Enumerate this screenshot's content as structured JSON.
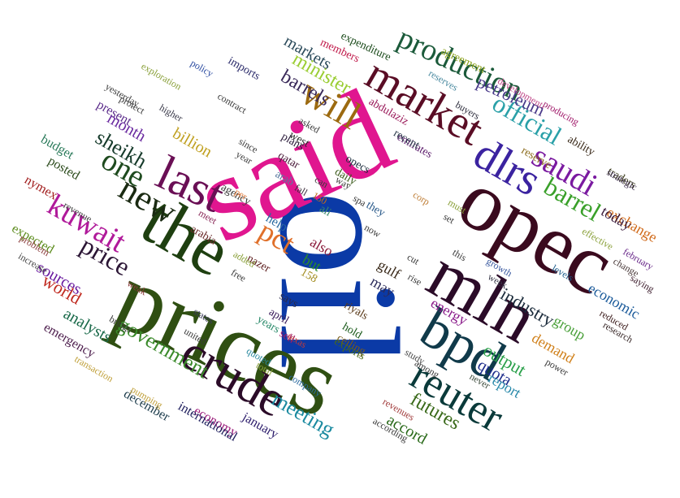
{
  "words": [
    {
      "text": "oil",
      "color": "#0b3aa6"
    },
    {
      "text": "said",
      "color": "#e0168f"
    },
    {
      "text": "prices",
      "color": "#2f4f12"
    },
    {
      "text": "opec",
      "color": "#3a0a1e"
    },
    {
      "text": "mln",
      "color": "#2b0b28"
    },
    {
      "text": "the",
      "color": "#1e3f10"
    },
    {
      "text": "bpd",
      "color": "#103a4a"
    },
    {
      "text": "crude",
      "color": "#2b0b28"
    },
    {
      "text": "last",
      "color": "#6a0f55"
    },
    {
      "text": "reuter",
      "color": "#0a3a3a"
    },
    {
      "text": "market",
      "color": "#5a0d25"
    },
    {
      "text": "dlrs",
      "color": "#3b23a0"
    },
    {
      "text": "will",
      "color": "#9c6a10"
    },
    {
      "text": "new",
      "color": "#1a2a12"
    },
    {
      "text": "one",
      "color": "#1e4a1e"
    },
    {
      "text": "saudi",
      "color": "#7a1aa0"
    },
    {
      "text": "kuwait",
      "color": "#b01a9a"
    },
    {
      "text": "production",
      "color": "#1b5a3a"
    },
    {
      "text": "official",
      "color": "#2aa0a8"
    },
    {
      "text": "barrel",
      "color": "#3aa02a"
    },
    {
      "text": "price",
      "color": "#2b1535"
    },
    {
      "text": "pct",
      "color": "#e0702a"
    },
    {
      "text": "government",
      "color": "#3a8a2a"
    },
    {
      "text": "meeting",
      "color": "#1a8aa0"
    },
    {
      "text": "minister",
      "color": "#9acd32"
    },
    {
      "text": "barrels",
      "color": "#3a2a5a"
    },
    {
      "text": "sheikh",
      "color": "#153a2a"
    },
    {
      "text": "industry",
      "color": "#1a2a3a"
    },
    {
      "text": "petroleum",
      "color": "#4a3a8a"
    },
    {
      "text": "world",
      "color": "#c02a20"
    },
    {
      "text": "futures",
      "color": "#3a6a1a"
    },
    {
      "text": "markets",
      "color": "#2a4a5a"
    },
    {
      "text": "month",
      "color": "#6a2aa0"
    },
    {
      "text": "accord",
      "color": "#2a6a1a"
    },
    {
      "text": "output",
      "color": "#2aa04a"
    },
    {
      "text": "quota",
      "color": "#1a2a8a"
    },
    {
      "text": "billion",
      "color": "#c0a020"
    },
    {
      "text": "sources",
      "color": "#6a1aa0"
    },
    {
      "text": "analysts",
      "color": "#1a6a4a"
    },
    {
      "text": "economic",
      "color": "#1a5a9a"
    },
    {
      "text": "exchange",
      "color": "#d06a1a"
    },
    {
      "text": "today",
      "color": "#3a1a3a"
    },
    {
      "text": "energy",
      "color": "#8a1a8a"
    },
    {
      "text": "also",
      "color": "#8a1a3a"
    },
    {
      "text": "but",
      "color": "#2a8a2a"
    },
    {
      "text": "gulf",
      "color": "#3a2a1a"
    },
    {
      "text": "may",
      "color": "#2a2a5a"
    },
    {
      "text": "group",
      "color": "#4aa03a"
    },
    {
      "text": "report",
      "color": "#2a8aaa"
    },
    {
      "text": "demand",
      "color": "#d0801a"
    },
    {
      "text": "january",
      "color": "#2a1a6a"
    },
    {
      "text": "economy",
      "color": "#9a1a7a"
    },
    {
      "text": "international",
      "color": "#1a1a5a"
    },
    {
      "text": "december",
      "color": "#1a3a4a"
    },
    {
      "text": "emergency",
      "color": "#4a1a4a"
    },
    {
      "text": "present",
      "color": "#5a2a8a"
    },
    {
      "text": "posted",
      "color": "#2a4a1a"
    },
    {
      "text": "budget",
      "color": "#2a7a5a"
    },
    {
      "text": "nymex",
      "color": "#a01a1a"
    },
    {
      "text": "expected",
      "color": "#5a8a1a"
    },
    {
      "text": "help",
      "color": "#2a6aa0"
    },
    {
      "text": "agreement",
      "color": "#8aa01a"
    },
    {
      "text": "members",
      "color": "#c01a4a"
    },
    {
      "text": "expenditure",
      "color": "#1a4a1a"
    },
    {
      "text": "imports",
      "color": "#2a2a6a"
    },
    {
      "text": "plans",
      "color": "#2a1a3a"
    },
    {
      "text": "abdulaziz",
      "color": "#9a1a5a"
    },
    {
      "text": "emirates",
      "color": "#5a1a6a"
    },
    {
      "text": "recent",
      "color": "#2a3a4a"
    },
    {
      "text": "opecs",
      "color": "#1a2a3a"
    },
    {
      "text": "daily",
      "color": "#3a5a1a"
    },
    {
      "text": "west",
      "color": "#2a2a2a"
    },
    {
      "text": "qatar",
      "color": "#4a1a3a"
    },
    {
      "text": "riyals",
      "color": "#5a3a1a"
    },
    {
      "text": "hold",
      "color": "#1a5a1a"
    },
    {
      "text": "sell",
      "color": "#a01a6a"
    },
    {
      "text": "says",
      "color": "#2a2a4a"
    },
    {
      "text": "april",
      "color": "#3a1a5a"
    },
    {
      "text": "nazer",
      "color": "#5a1a1a"
    },
    {
      "text": "158",
      "color": "#a08a1a"
    },
    {
      "text": "years",
      "color": "#2a8a6a"
    },
    {
      "text": "ceiling",
      "color": "#7a5a1a"
    },
    {
      "text": "exports",
      "color": "#4a6a1a"
    },
    {
      "text": "they",
      "color": "#2a5a8a"
    },
    {
      "text": "ali",
      "color": "#3a8a6a"
    },
    {
      "text": "arab",
      "color": "#5a7aa0"
    },
    {
      "text": "arabia",
      "color": "#6a2a2a"
    },
    {
      "text": "agency",
      "color": "#3a3a3a"
    },
    {
      "text": "traders",
      "color": "#3a3a1a"
    },
    {
      "text": "ability",
      "color": "#3a2a1a"
    },
    {
      "text": "reserve",
      "color": "#8a6a1a"
    },
    {
      "text": "development",
      "color": "#c04a8a"
    },
    {
      "text": "producing",
      "color": "#a01a6a"
    },
    {
      "text": "buyers",
      "color": "#2a2a3a"
    },
    {
      "text": "reserves",
      "color": "#4a8aa0"
    },
    {
      "text": "strategic",
      "color": "#3a2a4a"
    },
    {
      "text": "effective",
      "color": "#8aa03a"
    },
    {
      "text": "february",
      "color": "#6a2a8a"
    },
    {
      "text": "change",
      "color": "#4a3a3a"
    },
    {
      "text": "saying",
      "color": "#3a1a2a"
    },
    {
      "text": "levels",
      "color": "#1a5a8a"
    },
    {
      "text": "growth",
      "color": "#3a5aa0"
    },
    {
      "text": "week",
      "color": "#3a3a4a"
    },
    {
      "text": "reduced",
      "color": "#3a1a1a"
    },
    {
      "text": "research",
      "color": "#3a2a2a"
    },
    {
      "text": "power",
      "color": "#3a3a3a"
    },
    {
      "text": "never",
      "color": "#3a4a3a"
    },
    {
      "text": "study",
      "color": "#4a4a4a"
    },
    {
      "text": "among",
      "color": "#3a3a3a"
    },
    {
      "text": "according",
      "color": "#3a3a3a"
    },
    {
      "text": "revenues",
      "color": "#a03a3a"
    },
    {
      "text": "company",
      "color": "#2a6aa0"
    },
    {
      "text": "texas",
      "color": "#c03a3a"
    },
    {
      "text": "total",
      "color": "#8aa03a"
    },
    {
      "text": "quoted",
      "color": "#2a8aa0"
    },
    {
      "text": "united",
      "color": "#3a3a3a"
    },
    {
      "text": "states",
      "color": "#3a3a5a"
    },
    {
      "text": "brings",
      "color": "#3a3a3a"
    },
    {
      "text": "weak",
      "color": "#8a3a3a"
    },
    {
      "text": "transaction",
      "color": "#c0a03a"
    },
    {
      "text": "pumping",
      "color": "#c0a03a"
    },
    {
      "text": "increase",
      "color": "#4a4a4a"
    },
    {
      "text": "problem",
      "color": "#8a3a3a"
    },
    {
      "text": "revenue",
      "color": "#3a3a3a"
    },
    {
      "text": "policy",
      "color": "#2a4aa0"
    },
    {
      "text": "exploration",
      "color": "#8aa03a"
    },
    {
      "text": "yesterday",
      "color": "#3a3a3a"
    },
    {
      "text": "protect",
      "color": "#3a3a3a"
    },
    {
      "text": "higher",
      "color": "#3a3a4a"
    },
    {
      "text": "contract",
      "color": "#3a3a3a"
    },
    {
      "text": "since",
      "color": "#3a3a3a"
    },
    {
      "text": "year",
      "color": "#3a3a3a"
    },
    {
      "text": "asked",
      "color": "#3a3a3a"
    },
    {
      "text": "fall",
      "color": "#3a2a3a"
    },
    {
      "text": "per",
      "color": "#e07a3a"
    },
    {
      "text": "meet",
      "color": "#8a2a5a"
    },
    {
      "text": "added",
      "color": "#8aa03a"
    },
    {
      "text": "free",
      "color": "#3a3a3a"
    },
    {
      "text": "150",
      "color": "#c06a1a"
    },
    {
      "text": "can",
      "color": "#3a3a3a"
    },
    {
      "text": "way",
      "color": "#3a3a3a"
    },
    {
      "text": "spa",
      "color": "#3a3a3a"
    },
    {
      "text": "now",
      "color": "#3a3a3a"
    },
    {
      "text": "corp",
      "color": "#c0803a"
    },
    {
      "text": "must",
      "color": "#8aa03a"
    },
    {
      "text": "set",
      "color": "#3a3a3a"
    },
    {
      "text": "cut",
      "color": "#3a3a3a"
    },
    {
      "text": "rise",
      "color": "#3a3a3a"
    },
    {
      "text": "this",
      "color": "#3a3a3a"
    }
  ]
}
